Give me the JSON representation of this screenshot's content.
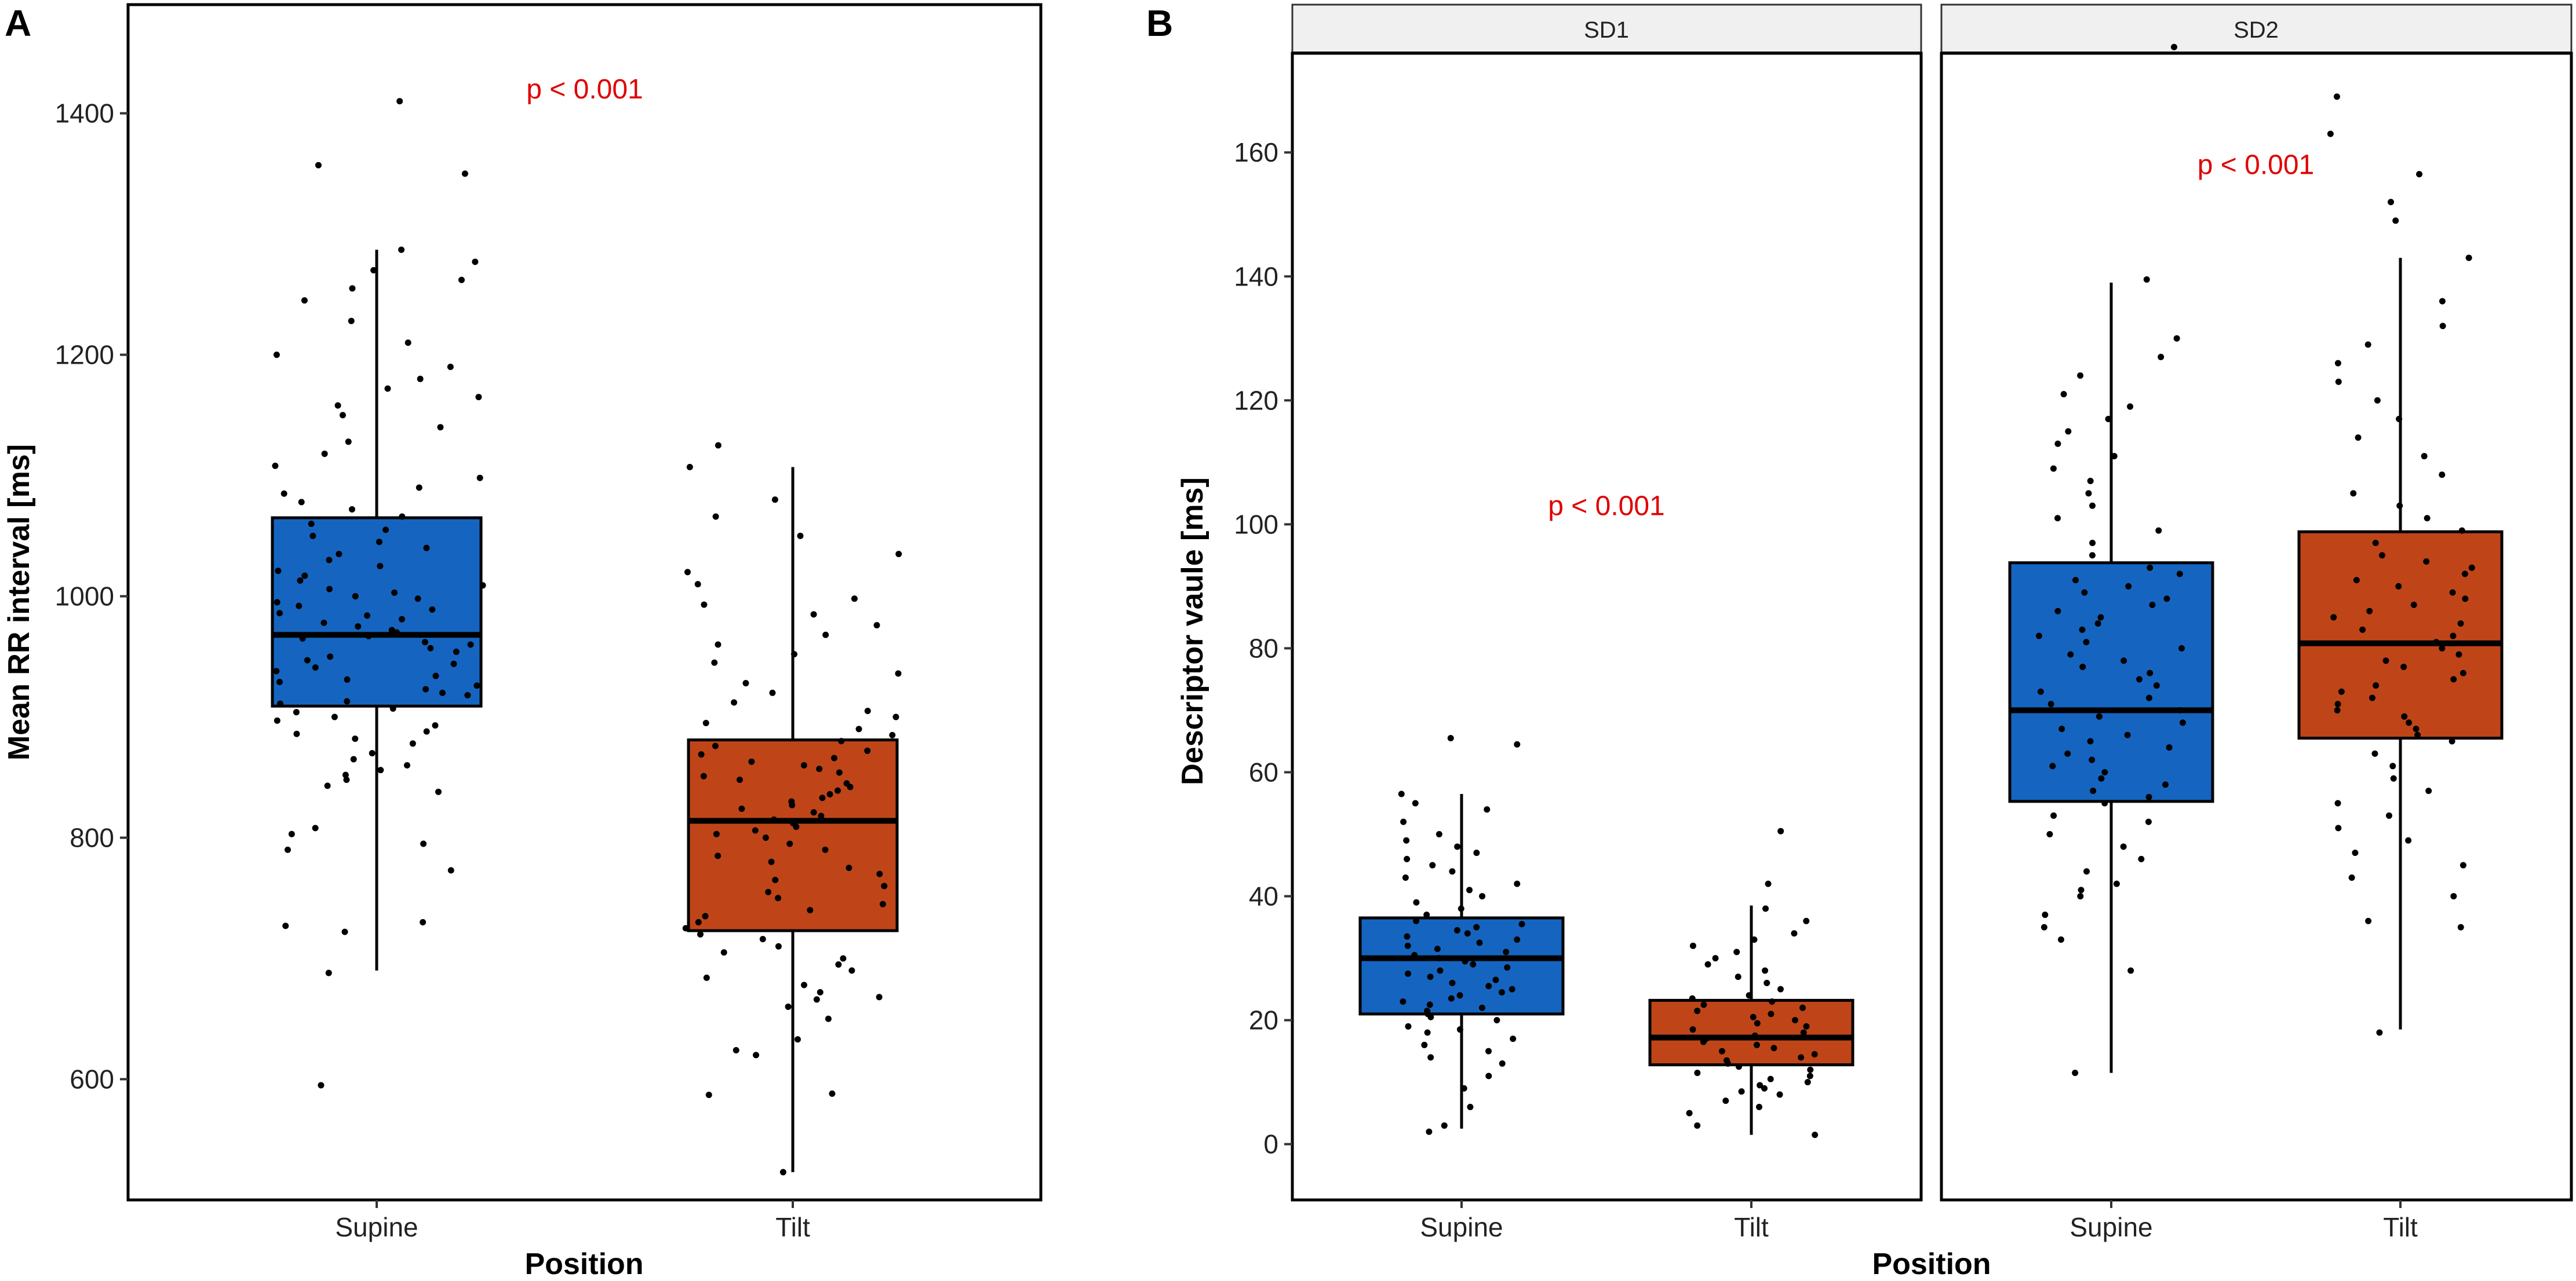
{
  "figure": {
    "colors": {
      "supine": "#1565C0",
      "tilt": "#BF4518",
      "annotation": "#E00000",
      "jitter": "#000000"
    }
  },
  "chart_data": [
    {
      "type": "box",
      "panel": "A",
      "title": "",
      "xlabel": "Position",
      "ylabel": "Mean RR interval [ms]",
      "categories": [
        "Supine",
        "Tilt"
      ],
      "ylim": [
        500,
        1490
      ],
      "yticks": [
        600,
        800,
        1000,
        1200,
        1400
      ],
      "annotation": "p < 0.001",
      "annotation_anchor": [
        1.5,
        1420
      ],
      "boxes": [
        {
          "category": "Supine",
          "whisker_low": 690,
          "q1": 909,
          "median": 968,
          "q3": 1065,
          "whisker_high": 1287,
          "color": "#1565C0",
          "points": [
            595,
            688,
            722,
            727,
            730,
            773,
            790,
            795,
            803,
            808,
            838,
            843,
            848,
            852,
            856,
            860,
            865,
            870,
            878,
            882,
            886,
            888,
            893,
            897,
            900,
            904,
            907,
            911,
            913,
            918,
            920,
            923,
            926,
            929,
            931,
            934,
            938,
            941,
            944,
            947,
            950,
            954,
            957,
            960,
            962,
            965,
            967,
            970,
            972,
            975,
            978,
            981,
            984,
            986,
            989,
            992,
            995,
            998,
            1000,
            1003,
            1006,
            1009,
            1013,
            1017,
            1021,
            1025,
            1030,
            1035,
            1040,
            1045,
            1050,
            1055,
            1060,
            1066,
            1072,
            1078,
            1085,
            1090,
            1098,
            1108,
            1118,
            1128,
            1140,
            1150,
            1158,
            1165,
            1172,
            1180,
            1190,
            1200,
            1210,
            1228,
            1245,
            1255,
            1262,
            1270,
            1277,
            1287,
            1350,
            1357,
            1410
          ]
        },
        {
          "category": "Tilt",
          "whisker_low": 523,
          "q1": 723,
          "median": 814,
          "q3": 881,
          "whisker_high": 1107,
          "color": "#BF4518",
          "points": [
            523,
            587,
            588,
            620,
            624,
            633,
            650,
            660,
            666,
            668,
            672,
            678,
            684,
            690,
            695,
            700,
            705,
            710,
            716,
            720,
            725,
            730,
            735,
            740,
            745,
            750,
            755,
            760,
            765,
            770,
            775,
            780,
            785,
            790,
            795,
            800,
            803,
            806,
            809,
            812,
            815,
            818,
            821,
            824,
            827,
            830,
            833,
            836,
            839,
            842,
            845,
            848,
            851,
            854,
            857,
            860,
            863,
            866,
            869,
            872,
            876,
            880,
            885,
            890,
            895,
            900,
            905,
            912,
            920,
            928,
            936,
            945,
            952,
            960,
            968,
            976,
            985,
            993,
            998,
            1010,
            1020,
            1035,
            1050,
            1066,
            1080,
            1107,
            1125
          ]
        }
      ]
    },
    {
      "type": "box",
      "panel": "B",
      "facet": "SD1",
      "title": "SD1",
      "xlabel": "Position",
      "ylabel": "Descriptor vaule [ms]",
      "categories": [
        "Supine",
        "Tilt"
      ],
      "ylim": [
        -9,
        176
      ],
      "yticks": [
        0,
        20,
        40,
        60,
        80,
        100,
        120,
        140,
        160
      ],
      "annotation": "p < 0.001",
      "annotation_anchor": [
        1.5,
        103
      ],
      "boxes": [
        {
          "category": "Supine",
          "whisker_low": 2.5,
          "q1": 21,
          "median": 30,
          "q3": 36.5,
          "whisker_high": 56.5,
          "color": "#1565C0",
          "points": [
            2,
            3,
            6,
            9,
            11,
            13,
            14,
            15,
            16,
            17,
            18,
            18.5,
            19,
            20,
            20.5,
            21,
            21.5,
            22,
            22.5,
            23,
            23.5,
            24,
            24.5,
            25,
            25.5,
            26,
            26.5,
            27,
            27.5,
            28,
            28.5,
            29,
            29.5,
            30,
            30.5,
            31,
            31.5,
            32,
            32.5,
            33,
            33.5,
            34,
            34.5,
            35,
            35.5,
            36,
            37,
            38,
            39,
            40,
            41,
            42,
            43,
            44,
            45,
            46,
            47,
            48,
            49,
            50,
            52,
            54,
            55,
            56.5,
            64.5,
            65.5
          ]
        },
        {
          "category": "Tilt",
          "whisker_low": 1.5,
          "q1": 12.8,
          "median": 17.2,
          "q3": 23.2,
          "whisker_high": 38.5,
          "color": "#BF4518",
          "points": [
            1.5,
            3,
            5,
            6,
            7,
            8,
            8.5,
            9,
            9.5,
            10,
            10.5,
            11,
            11.5,
            12,
            12.5,
            13,
            13.5,
            14,
            14.5,
            15,
            15.5,
            16,
            16.5,
            17,
            17.5,
            18,
            18.5,
            19,
            19.5,
            20,
            20.5,
            21,
            21.5,
            22,
            22.5,
            23,
            23.5,
            24,
            25,
            26,
            27,
            28,
            29,
            30,
            31,
            32,
            33,
            34,
            36,
            38,
            42,
            50.5
          ]
        }
      ]
    },
    {
      "type": "box",
      "panel": "B",
      "facet": "SD2",
      "title": "SD2",
      "xlabel": "Position",
      "ylabel": "Descriptor vaule [ms]",
      "categories": [
        "Supine",
        "Tilt"
      ],
      "ylim": [
        -9,
        176
      ],
      "yticks": [
        0,
        20,
        40,
        60,
        80,
        100,
        120,
        140,
        160
      ],
      "annotation": "p < 0.001",
      "annotation_anchor": [
        1.5,
        158
      ],
      "boxes": [
        {
          "category": "Supine",
          "whisker_low": 11.5,
          "q1": 55.3,
          "median": 70,
          "q3": 93.8,
          "whisker_high": 139,
          "color": "#1565C0",
          "points": [
            11.5,
            28,
            33,
            35,
            37,
            40,
            41,
            42,
            44,
            46,
            48,
            50,
            52,
            53,
            55,
            56,
            57,
            58,
            59,
            60,
            61,
            62,
            63,
            64,
            65,
            66,
            67,
            68,
            69,
            70,
            71,
            72,
            73,
            74,
            75,
            76,
            77,
            78,
            79,
            80,
            81,
            82,
            83,
            84,
            85,
            86,
            87,
            88,
            89,
            90,
            91,
            92,
            93,
            95,
            97,
            99,
            101,
            103,
            105,
            107,
            109,
            111,
            113,
            115,
            117,
            119,
            121,
            124,
            127,
            130,
            139.5,
            177
          ]
        },
        {
          "category": "Tilt",
          "whisker_low": 18.5,
          "q1": 65.5,
          "median": 80.8,
          "q3": 98.8,
          "whisker_high": 143,
          "color": "#BF4518",
          "points": [
            18,
            35,
            36,
            40,
            43,
            45,
            47,
            49,
            51,
            53,
            55,
            57,
            59,
            61,
            63,
            65,
            66,
            67,
            68,
            69,
            70,
            71,
            72,
            73,
            74,
            75,
            76,
            77,
            78,
            79,
            80,
            81,
            82,
            83,
            84,
            85,
            86,
            87,
            88,
            89,
            90,
            91,
            92,
            93,
            94,
            95,
            97,
            99,
            101,
            103,
            105,
            108,
            111,
            114,
            117,
            120,
            123,
            126,
            129,
            132,
            136,
            143,
            149,
            152,
            156.5,
            163,
            169
          ]
        }
      ]
    }
  ]
}
